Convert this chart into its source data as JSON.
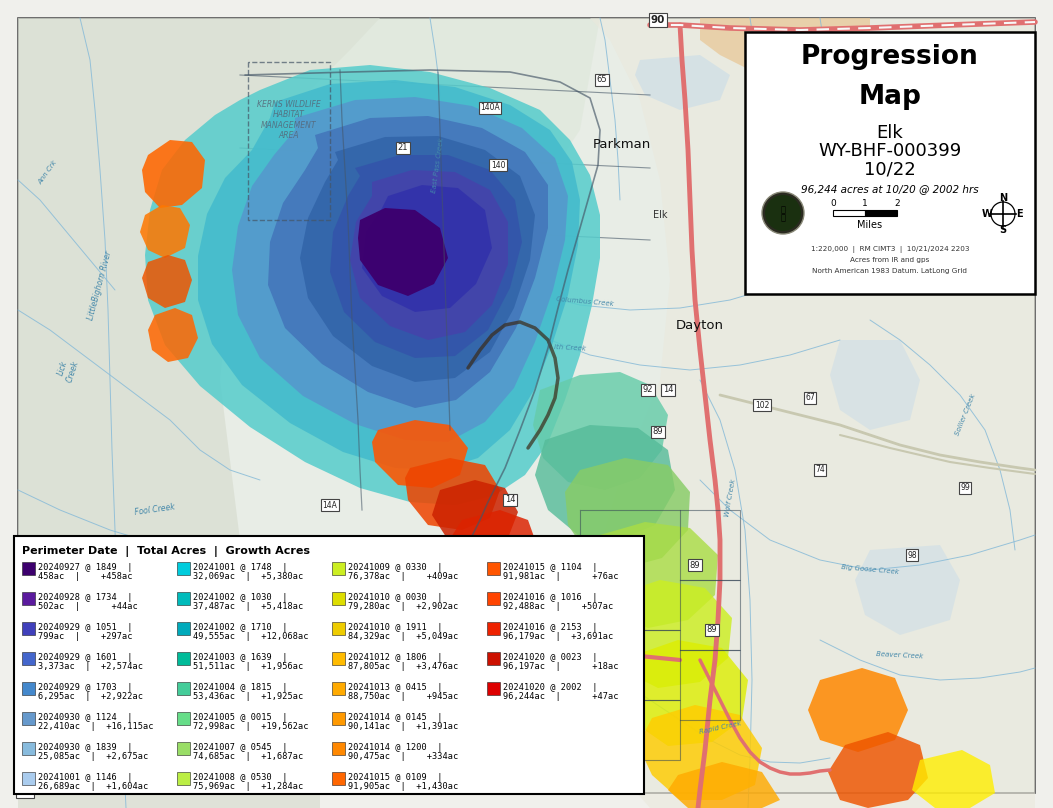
{
  "title": "Progression\nMap",
  "subtitle_line1": "Elk",
  "subtitle_line2": "WY-BHF-000399",
  "subtitle_line3": "10/22",
  "acres_text": "96,244 acres at 10/20 @ 2002 hrs",
  "scale_text": "Miles",
  "map_credit1": "1:220,000  |  RM CIMT3  |  10/21/2024 2203",
  "map_credit2": "Acres from IR and gps",
  "map_credit3": "North American 1983 Datum. LatLong Grid",
  "legend_header": "Perimeter Date  |  Total Acres  |  Growth Acres",
  "legend_items": [
    {
      "color": "#3d006e",
      "line1": "20240927 @ 1849  |",
      "line2": "458ac  |    +458ac"
    },
    {
      "color": "#5b1a9e",
      "line1": "20240928 @ 1734  |",
      "line2": "502ac  |      +44ac"
    },
    {
      "color": "#4040bb",
      "line1": "20240929 @ 1051  |",
      "line2": "799ac  |    +297ac"
    },
    {
      "color": "#4466cc",
      "line1": "20240929 @ 1601  |",
      "line2": "3,373ac  |  +2,574ac"
    },
    {
      "color": "#4488cc",
      "line1": "20240929 @ 1703  |",
      "line2": "6,295ac  |  +2,922ac"
    },
    {
      "color": "#6699cc",
      "line1": "20240930 @ 1124  |",
      "line2": "22,410ac  |  +16,115ac"
    },
    {
      "color": "#88bbdd",
      "line1": "20240930 @ 1839  |",
      "line2": "25,085ac  |  +2,675ac"
    },
    {
      "color": "#aaccee",
      "line1": "20241001 @ 1146  |",
      "line2": "26,689ac  |  +1,604ac"
    },
    {
      "color": "#00ccdd",
      "line1": "20241001 @ 1748  |",
      "line2": "32,069ac  |  +5,380ac"
    },
    {
      "color": "#00bbbb",
      "line1": "20241002 @ 1030  |",
      "line2": "37,487ac  |  +5,418ac"
    },
    {
      "color": "#00aabb",
      "line1": "20241002 @ 1710  |",
      "line2": "49,555ac  |  +12,068ac"
    },
    {
      "color": "#00bb99",
      "line1": "20241003 @ 1639  |",
      "line2": "51,511ac  |  +1,956ac"
    },
    {
      "color": "#44cc99",
      "line1": "20241004 @ 1815  |",
      "line2": "53,436ac  |  +1,925ac"
    },
    {
      "color": "#66dd88",
      "line1": "20241005 @ 0015  |",
      "line2": "72,998ac  |  +19,562ac"
    },
    {
      "color": "#99dd66",
      "line1": "20241007 @ 0545  |",
      "line2": "74,685ac  |  +1,687ac"
    },
    {
      "color": "#bbee44",
      "line1": "20241008 @ 0530  |",
      "line2": "75,969ac  |  +1,284ac"
    },
    {
      "color": "#ccee22",
      "line1": "20241009 @ 0330  |",
      "line2": "76,378ac  |    +409ac"
    },
    {
      "color": "#dddd00",
      "line1": "20241010 @ 0030  |",
      "line2": "79,280ac  |  +2,902ac"
    },
    {
      "color": "#eecc00",
      "line1": "20241010 @ 1911  |",
      "line2": "84,329ac  |  +5,049ac"
    },
    {
      "color": "#ffbb00",
      "line1": "20241012 @ 1806  |",
      "line2": "87,805ac  |  +3,476ac"
    },
    {
      "color": "#ffaa00",
      "line1": "20241013 @ 0415  |",
      "line2": "88,750ac  |    +945ac"
    },
    {
      "color": "#ff9900",
      "line1": "20241014 @ 0145  |",
      "line2": "90,141ac  |  +1,391ac"
    },
    {
      "color": "#ff8800",
      "line1": "20241014 @ 1200  |",
      "line2": "90,475ac  |    +334ac"
    },
    {
      "color": "#ff6600",
      "line1": "20241015 @ 0109  |",
      "line2": "91,905ac  |  +1,430ac"
    },
    {
      "color": "#ff5500",
      "line1": "20241015 @ 1104  |",
      "line2": "91,981ac  |      +76ac"
    },
    {
      "color": "#ff4400",
      "line1": "20241016 @ 1016  |",
      "line2": "92,488ac  |    +507ac"
    },
    {
      "color": "#ee2200",
      "line1": "20241016 @ 2153  |",
      "line2": "96,179ac  |  +3,691ac"
    },
    {
      "color": "#cc1100",
      "line1": "20241020 @ 0023  |",
      "line2": "96,197ac  |      +18ac"
    },
    {
      "color": "#dd0000",
      "line1": "20241020 @ 2002  |",
      "line2": "96,244ac  |      +47ac"
    }
  ],
  "bg_color": "#f0f0ec",
  "info_box_bg": "#ffffff",
  "legend_box_bg": "#ffffff"
}
